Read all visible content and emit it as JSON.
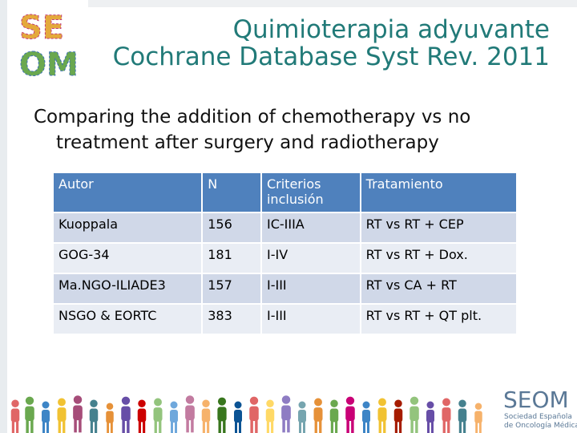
{
  "header": {
    "logo_text": [
      "SE",
      "OM"
    ],
    "title": [
      "Quimioterapia adyuvante",
      "Cochrane Database Syst Rev. 2011"
    ]
  },
  "intro": "Comparing the addition of chemotherapy vs no treatment after surgery and radiotherapy",
  "table": {
    "columns": [
      "Autor",
      "N",
      "Criterios inclusión",
      "Tratamiento"
    ],
    "rows": [
      [
        "Kuoppala",
        156,
        "IC-IIIA",
        "RT vs RT + CEP"
      ],
      [
        "GOG-34",
        181,
        "I-IV",
        "RT vs RT + Dox."
      ],
      [
        "Ma.NGO-ILIADE3",
        157,
        "I-III",
        "RT vs CA + RT"
      ],
      [
        "NSGO & EORTC",
        383,
        "I-III",
        "RT vs RT + QT plt."
      ]
    ]
  },
  "footer": {
    "logo": "SEOM",
    "org": [
      "Sociedad Española",
      "de Oncología Médica"
    ]
  }
}
